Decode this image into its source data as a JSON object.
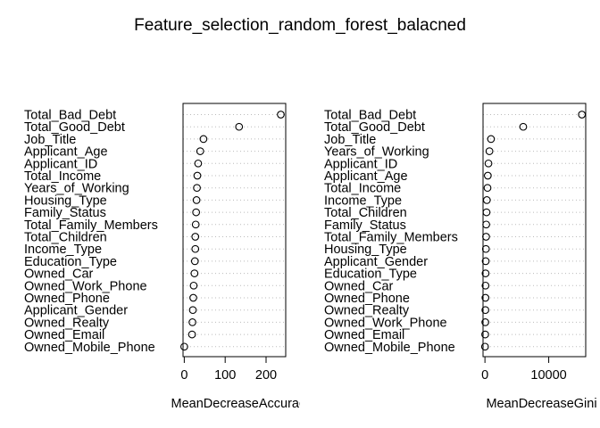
{
  "chart_data": {
    "type": "scatter",
    "title": "Feature_selection_random_forest_balacned",
    "panels": [
      {
        "xlabel": "MeanDecreaseAccuracy",
        "xlim": [
          -3,
          248
        ],
        "xticks": [
          0,
          100,
          200
        ],
        "grid": "dotted horizontal",
        "labels": [
          "Total_Bad_Debt",
          "Total_Good_Debt",
          "Job_Title",
          "Applicant_Age",
          "Applicant_ID",
          "Total_Income",
          "Years_of_Working",
          "Housing_Type",
          "Family_Status",
          "Total_Family_Members",
          "Total_Children",
          "Income_Type",
          "Education_Type",
          "Owned_Car",
          "Owned_Work_Phone",
          "Owned_Phone",
          "Applicant_Gender",
          "Owned_Realty",
          "Owned_Email",
          "Owned_Mobile_Phone"
        ],
        "values": [
          236,
          134,
          47,
          39,
          34,
          32,
          31,
          30,
          29,
          28,
          27,
          27,
          26,
          25,
          23,
          22,
          21,
          20,
          19,
          0
        ]
      },
      {
        "xlabel": "MeanDecreaseGini",
        "xlim": [
          -300,
          15800
        ],
        "xticks": [
          0,
          10000
        ],
        "grid": "dotted horizontal",
        "labels": [
          "Total_Bad_Debt",
          "Total_Good_Debt",
          "Job_Title",
          "Years_of_Working",
          "Applicant_ID",
          "Applicant_Age",
          "Total_Income",
          "Income_Type",
          "Total_Children",
          "Family_Status",
          "Total_Family_Members",
          "Housing_Type",
          "Applicant_Gender",
          "Education_Type",
          "Owned_Car",
          "Owned_Phone",
          "Owned_Realty",
          "Owned_Work_Phone",
          "Owned_Email",
          "Owned_Mobile_Phone"
        ],
        "values": [
          15200,
          6000,
          950,
          700,
          550,
          450,
          400,
          300,
          250,
          200,
          180,
          150,
          120,
          100,
          90,
          80,
          70,
          60,
          40,
          10
        ]
      }
    ]
  }
}
